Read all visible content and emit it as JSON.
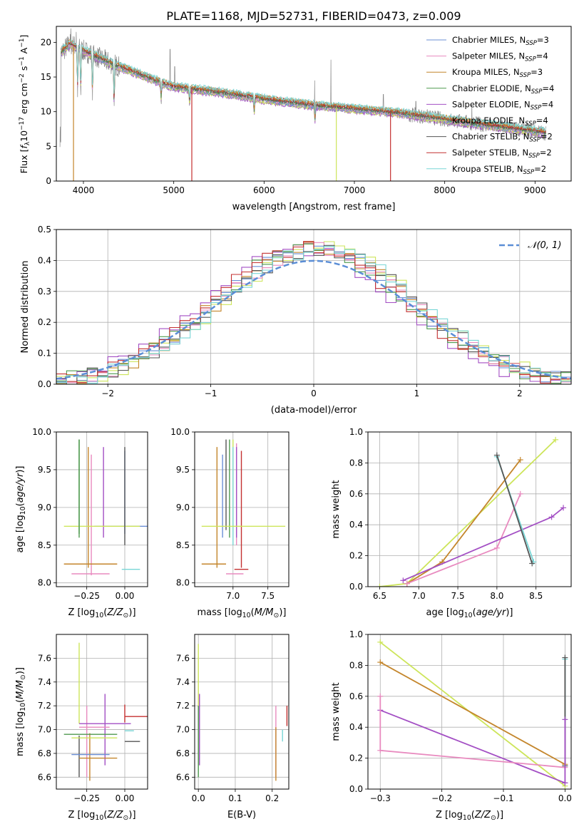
{
  "figure_title": "PLATE=1168, MJD=52731, FIBERID=0473, z=0.009",
  "legend_labels": [
    {
      "pre": "Chabrier MILES, N",
      "sub": "SSP",
      "post": "=3",
      "color": "#6b8fd6"
    },
    {
      "pre": "Salpeter MILES, N",
      "sub": "SSP",
      "post": "=4",
      "color": "#e88abf"
    },
    {
      "pre": "Kroupa MILES, N",
      "sub": "SSP",
      "post": "=3",
      "color": "#c4862c"
    },
    {
      "pre": "Chabrier ELODIE, N",
      "sub": "SSP",
      "post": "=4",
      "color": "#4f9a4f"
    },
    {
      "pre": "Salpeter ELODIE, N",
      "sub": "SSP",
      "post": "=4",
      "color": "#a34fc4"
    },
    {
      "pre": "Kroupa ELODIE, N",
      "sub": "SSP",
      "post": "=4",
      "color": "#cde55a"
    },
    {
      "pre": "Chabrier STELIB, N",
      "sub": "SSP",
      "post": "=2",
      "color": "#555555"
    },
    {
      "pre": "Salpeter STELIB, N",
      "sub": "SSP",
      "post": "=2",
      "color": "#c43030"
    },
    {
      "pre": "Kroupa STELIB, N",
      "sub": "SSP",
      "post": "=2",
      "color": "#79d6d6"
    }
  ],
  "chart_data": [
    {
      "id": "spectrum",
      "type": "line",
      "xlabel": "wavelength [Angstrom, rest frame]",
      "ylabel": "Flux [f_λ 10^-17 erg cm^-2 s^-1 A^-1]",
      "xlim": [
        3700,
        9400
      ],
      "ylim": [
        0,
        22.3
      ],
      "xticks": [
        4000,
        5000,
        6000,
        7000,
        8000,
        9000
      ],
      "yticks": [
        0,
        5,
        10,
        15,
        20
      ],
      "grid": false,
      "legend_position": "top-right",
      "continuum_anchors": [
        [
          3750,
          18.5
        ],
        [
          3850,
          19.8
        ],
        [
          4000,
          18.8
        ],
        [
          4300,
          17.0
        ],
        [
          4800,
          14.5
        ],
        [
          5000,
          13.6
        ],
        [
          5500,
          12.8
        ],
        [
          6000,
          11.8
        ],
        [
          6500,
          11.0
        ],
        [
          7000,
          10.4
        ],
        [
          7500,
          9.8
        ],
        [
          8000,
          8.9
        ],
        [
          8500,
          8.0
        ],
        [
          9000,
          7.2
        ],
        [
          9300,
          6.5
        ]
      ],
      "model_dips": [
        [
          3890,
          0.0
        ],
        [
          5200,
          0.0
        ],
        [
          6800,
          0.0
        ],
        [
          7400,
          0.0
        ],
        [
          3935,
          7.0
        ],
        [
          3970,
          8.0
        ],
        [
          4100,
          11.0
        ],
        [
          4340,
          10.0
        ]
      ],
      "observed_spikes": [
        [
          3860,
          22.0
        ],
        [
          3920,
          21.5
        ],
        [
          6740,
          17.5
        ],
        [
          4960,
          19.0
        ],
        [
          5010,
          16.5
        ],
        [
          6560,
          14.5
        ],
        [
          7320,
          12.5
        ],
        [
          7680,
          11.5
        ],
        [
          8300,
          11.0
        ]
      ]
    },
    {
      "id": "residuals",
      "type": "histogram",
      "xlabel": "(data-model)/error",
      "ylabel": "Normed distribution",
      "xlim": [
        -2.5,
        2.5
      ],
      "ylim": [
        0,
        0.5
      ],
      "xticks": [
        -2,
        -1,
        0,
        1,
        2
      ],
      "yticks": [
        0.0,
        0.1,
        0.2,
        0.3,
        0.4,
        0.5
      ],
      "grid": true,
      "bin_width": 0.1,
      "reference_curve": {
        "label": "𝒩(0, 1)",
        "mean": 0,
        "sigma": 1,
        "style": "dashed",
        "color": "#5b8ed6"
      },
      "legend_position": "top-right"
    },
    {
      "id": "age_vs_Z",
      "type": "errorbar",
      "xlabel": "Z [log10(Z/Z☉)]",
      "ylabel": "age [log10(age/yr)]",
      "xlim": [
        -0.45,
        0.15
      ],
      "ylim": [
        7.95,
        10.0
      ],
      "xticks": [
        -0.25,
        0.0
      ],
      "yticks": [
        8.0,
        8.5,
        9.0,
        9.5,
        10.0
      ],
      "grid": true,
      "points": [
        {
          "series": 0,
          "x": 0.0,
          "xerr": [
            0.2,
            0.15
          ],
          "y": 8.75,
          "yerr": [
            0.1,
            1.0
          ]
        },
        {
          "series": 1,
          "x": -0.22,
          "xerr": [
            0.0,
            0.0
          ],
          "y": 8.5,
          "yerr": [
            0.4,
            1.2
          ]
        },
        {
          "series": 2,
          "x": -0.24,
          "xerr": [
            0.0,
            0.0
          ],
          "y": 8.9,
          "yerr": [
            0.7,
            0.9
          ]
        },
        {
          "series": 3,
          "x": -0.3,
          "xerr": [
            0.0,
            0.0
          ],
          "y": 9.3,
          "yerr": [
            0.7,
            0.6
          ]
        },
        {
          "series": 4,
          "x": -0.14,
          "xerr": [
            0.0,
            0.0
          ],
          "y": 9.2,
          "yerr": [
            0.6,
            0.6
          ]
        },
        {
          "series": 5,
          "x": -0.05,
          "xerr": [
            0.35,
            0.15
          ],
          "y": 8.75,
          "yerr": [
            0.0,
            0.0
          ]
        },
        {
          "series": 6,
          "x": 0.0,
          "xerr": [
            0.0,
            0.0
          ],
          "y": 9.0,
          "yerr": [
            0.5,
            0.8
          ]
        },
        {
          "series": 2,
          "x": -0.2,
          "xerr": [
            0.2,
            0.15
          ],
          "y": 8.25,
          "yerr": [
            0.0,
            0.0
          ]
        },
        {
          "series": 1,
          "x": -0.2,
          "xerr": [
            0.15,
            0.1
          ],
          "y": 8.12,
          "yerr": [
            0.0,
            0.0
          ]
        },
        {
          "series": 8,
          "x": 0.0,
          "xerr": [
            0.02,
            0.1
          ],
          "y": 8.18,
          "yerr": [
            0.0,
            0.0
          ]
        },
        {
          "series": 3,
          "x": -0.3,
          "xerr": [
            0.0,
            0.0
          ],
          "y": 9.25,
          "yerr": [
            0.6,
            0.65
          ]
        }
      ]
    },
    {
      "id": "age_vs_mass",
      "type": "errorbar",
      "xlabel": "mass [log10(M/M☉)]",
      "ylabel": "",
      "xlim": [
        6.45,
        7.8
      ],
      "ylim": [
        7.95,
        10.0
      ],
      "xticks": [
        7.0,
        7.5
      ],
      "yticks": [
        8.0,
        8.5,
        9.0,
        9.5,
        10.0
      ],
      "grid": true,
      "points": [
        {
          "series": 0,
          "x": 6.85,
          "xerr": [
            0.0,
            0.0
          ],
          "y": 8.7,
          "yerr": [
            0.1,
            1.0
          ]
        },
        {
          "series": 1,
          "x": 7.05,
          "xerr": [
            0.0,
            0.0
          ],
          "y": 9.0,
          "yerr": [
            0.5,
            0.85
          ]
        },
        {
          "series": 2,
          "x": 6.77,
          "xerr": [
            0.0,
            0.0
          ],
          "y": 8.9,
          "yerr": [
            0.7,
            0.9
          ]
        },
        {
          "series": 3,
          "x": 6.95,
          "xerr": [
            0.0,
            0.0
          ],
          "y": 9.2,
          "yerr": [
            0.6,
            0.7
          ]
        },
        {
          "series": 4,
          "x": 7.05,
          "xerr": [
            0.0,
            0.0
          ],
          "y": 9.2,
          "yerr": [
            0.6,
            0.6
          ]
        },
        {
          "series": 5,
          "x": 7.0,
          "xerr": [
            0.0,
            0.0
          ],
          "y": 9.3,
          "yerr": [
            0.6,
            0.6
          ]
        },
        {
          "series": 6,
          "x": 6.9,
          "xerr": [
            0.0,
            0.0
          ],
          "y": 9.2,
          "yerr": [
            0.5,
            0.7
          ]
        },
        {
          "series": 7,
          "x": 7.12,
          "xerr": [
            0.0,
            0.0
          ],
          "y": 9.0,
          "yerr": [
            0.8,
            0.75
          ]
        },
        {
          "series": 8,
          "x": 7.0,
          "xerr": [
            0.0,
            0.0
          ],
          "y": 9.0,
          "yerr": [
            0.5,
            0.8
          ]
        },
        {
          "series": 5,
          "x": 7.1,
          "xerr": [
            0.55,
            0.65
          ],
          "y": 8.75,
          "yerr": [
            0.0,
            0.0
          ]
        },
        {
          "series": 2,
          "x": 6.75,
          "xerr": [
            0.2,
            0.15
          ],
          "y": 8.25,
          "yerr": [
            0.0,
            0.0
          ]
        },
        {
          "series": 1,
          "x": 7.05,
          "xerr": [
            0.15,
            0.1
          ],
          "y": 8.12,
          "yerr": [
            0.0,
            0.0
          ]
        },
        {
          "series": 7,
          "x": 7.12,
          "xerr": [
            0.1,
            0.1
          ],
          "y": 8.18,
          "yerr": [
            0.0,
            0.0
          ]
        }
      ]
    },
    {
      "id": "massweight_vs_age",
      "type": "line",
      "xlabel": "age [log10(age/yr)]",
      "ylabel": "mass weight",
      "xlim": [
        6.35,
        8.95
      ],
      "ylim": [
        0,
        1.0
      ],
      "xticks": [
        6.5,
        7.0,
        7.5,
        8.0,
        8.5
      ],
      "yticks": [
        0.0,
        0.2,
        0.4,
        0.6,
        0.8,
        1.0
      ],
      "grid": true,
      "series": [
        {
          "series": 5,
          "x": [
            6.5,
            6.85,
            8.75
          ],
          "y": [
            0.0,
            0.02,
            0.95
          ]
        },
        {
          "series": 2,
          "x": [
            6.85,
            7.3,
            8.3
          ],
          "y": [
            0.02,
            0.16,
            0.82
          ]
        },
        {
          "series": 1,
          "x": [
            6.85,
            8.0,
            8.3
          ],
          "y": [
            0.02,
            0.25,
            0.6
          ]
        },
        {
          "series": 4,
          "x": [
            6.8,
            8.7,
            8.85
          ],
          "y": [
            0.04,
            0.45,
            0.51
          ]
        },
        {
          "series": 8,
          "x": [
            8.0,
            8.47
          ],
          "y": [
            0.84,
            0.16
          ]
        },
        {
          "series": 6,
          "x": [
            8.0,
            8.45
          ],
          "y": [
            0.85,
            0.15
          ]
        }
      ]
    },
    {
      "id": "mass_vs_Z",
      "type": "errorbar",
      "xlabel": "Z [log10(Z/Z☉)]",
      "ylabel": "mass [log10(M/M☉)]",
      "xlim": [
        -0.45,
        0.15
      ],
      "ylim": [
        6.5,
        7.8
      ],
      "xticks": [
        -0.25,
        0.0
      ],
      "yticks": [
        6.6,
        6.8,
        7.0,
        7.2,
        7.4,
        7.6
      ],
      "grid": true,
      "points": [
        {
          "series": 6,
          "x": -0.3,
          "xerr": [
            0.0,
            0.0
          ],
          "y": 6.95,
          "yerr": [
            0.35,
            0.0
          ]
        },
        {
          "series": 5,
          "x": -0.3,
          "xerr": [
            0.0,
            0.0
          ],
          "y": 7.35,
          "yerr": [
            0.3,
            0.38
          ]
        },
        {
          "series": 1,
          "x": -0.25,
          "xerr": [
            0.0,
            0.0
          ],
          "y": 6.9,
          "yerr": [
            0.3,
            0.3
          ]
        },
        {
          "series": 2,
          "x": -0.23,
          "xerr": [
            0.0,
            0.0
          ],
          "y": 6.77,
          "yerr": [
            0.2,
            0.2
          ]
        },
        {
          "series": 4,
          "x": -0.13,
          "xerr": [
            0.0,
            0.0
          ],
          "y": 7.0,
          "yerr": [
            0.3,
            0.3
          ]
        },
        {
          "series": 4,
          "x": -0.13,
          "xerr": [
            0.17,
            0.17
          ],
          "y": 7.05,
          "yerr": [
            0.0,
            0.0
          ]
        },
        {
          "series": 1,
          "x": -0.1,
          "xerr": [
            0.2,
            0.0
          ],
          "y": 7.02,
          "yerr": [
            0.0,
            0.0
          ]
        },
        {
          "series": 3,
          "x": -0.05,
          "xerr": [
            0.35,
            0.0
          ],
          "y": 6.96,
          "yerr": [
            0.0,
            0.0
          ]
        },
        {
          "series": 5,
          "x": -0.1,
          "xerr": [
            0.25,
            0.05
          ],
          "y": 6.93,
          "yerr": [
            0.0,
            0.0
          ]
        },
        {
          "series": 0,
          "x": -0.2,
          "xerr": [
            0.15,
            0.1
          ],
          "y": 6.79,
          "yerr": [
            0.0,
            0.0
          ]
        },
        {
          "series": 2,
          "x": -0.2,
          "xerr": [
            0.1,
            0.15
          ],
          "y": 6.76,
          "yerr": [
            0.0,
            0.0
          ]
        },
        {
          "series": 7,
          "x": 0.0,
          "xerr": [
            0.0,
            0.15
          ],
          "y": 7.11,
          "yerr": [
            0.05,
            0.1
          ]
        },
        {
          "series": 6,
          "x": 0.05,
          "xerr": [
            0.05,
            0.05
          ],
          "y": 6.9,
          "yerr": [
            0.0,
            0.0
          ]
        },
        {
          "series": 8,
          "x": 0.03,
          "xerr": [
            0.03,
            0.03
          ],
          "y": 6.99,
          "yerr": [
            0.0,
            0.0
          ]
        }
      ]
    },
    {
      "id": "mass_vs_ebv",
      "type": "errorbar",
      "xlabel": "E(B-V)",
      "ylabel": "",
      "xlim": [
        -0.01,
        0.245
      ],
      "ylim": [
        6.5,
        7.8
      ],
      "xticks": [
        0.0,
        0.1,
        0.2
      ],
      "yticks": [
        6.6,
        6.8,
        7.0,
        7.2,
        7.4,
        7.6
      ],
      "grid": true,
      "points": [
        {
          "series": 5,
          "x": 0.0,
          "xerr": [
            0.0,
            0.0
          ],
          "y": 7.1,
          "yerr": [
            0.4,
            0.62
          ]
        },
        {
          "series": 3,
          "x": 0.0,
          "xerr": [
            0.0,
            0.0
          ],
          "y": 6.85,
          "yerr": [
            0.25,
            0.35
          ]
        },
        {
          "series": 4,
          "x": 0.003,
          "xerr": [
            0.0,
            0.0
          ],
          "y": 7.0,
          "yerr": [
            0.3,
            0.3
          ]
        },
        {
          "series": 1,
          "x": 0.21,
          "xerr": [
            0.0,
            0.0
          ],
          "y": 6.9,
          "yerr": [
            0.3,
            0.3
          ]
        },
        {
          "series": 2,
          "x": 0.21,
          "xerr": [
            0.0,
            0.0
          ],
          "y": 6.8,
          "yerr": [
            0.23,
            0.22
          ]
        },
        {
          "series": 7,
          "x": 0.24,
          "xerr": [
            0.0,
            0.0
          ],
          "y": 7.1,
          "yerr": [
            0.07,
            0.1
          ]
        },
        {
          "series": 8,
          "x": 0.228,
          "xerr": [
            0.0,
            0.0
          ],
          "y": 6.95,
          "yerr": [
            0.05,
            0.05
          ]
        }
      ]
    },
    {
      "id": "massweight_vs_Z",
      "type": "line",
      "xlabel": "Z [log10(Z/Z☉)]",
      "ylabel": "mass weight",
      "xlim": [
        -0.32,
        0.01
      ],
      "ylim": [
        0,
        1.0
      ],
      "xticks": [
        -0.3,
        -0.2,
        -0.1,
        0.0
      ],
      "yticks": [
        0.0,
        0.2,
        0.4,
        0.6,
        0.8,
        1.0
      ],
      "grid": true,
      "series": [
        {
          "series": 5,
          "x": [
            -0.3,
            0.0
          ],
          "y": [
            0.95,
            0.02
          ]
        },
        {
          "series": 2,
          "x": [
            -0.3,
            0.0
          ],
          "y": [
            0.82,
            0.16
          ]
        },
        {
          "series": 4,
          "x": [
            -0.3,
            0.0
          ],
          "y": [
            0.51,
            0.04
          ]
        },
        {
          "series": 1,
          "x": [
            -0.3,
            -0.3,
            0.0
          ],
          "y": [
            0.6,
            0.25,
            0.14
          ]
        },
        {
          "series": 8,
          "x": [
            0.0,
            0.0
          ],
          "y": [
            0.84,
            0.15
          ]
        },
        {
          "series": 6,
          "x": [
            0.0,
            0.0
          ],
          "y": [
            0.85,
            0.15
          ]
        },
        {
          "series": 4,
          "x": [
            0.0,
            0.0
          ],
          "y": [
            0.45,
            0.04
          ]
        }
      ]
    }
  ]
}
